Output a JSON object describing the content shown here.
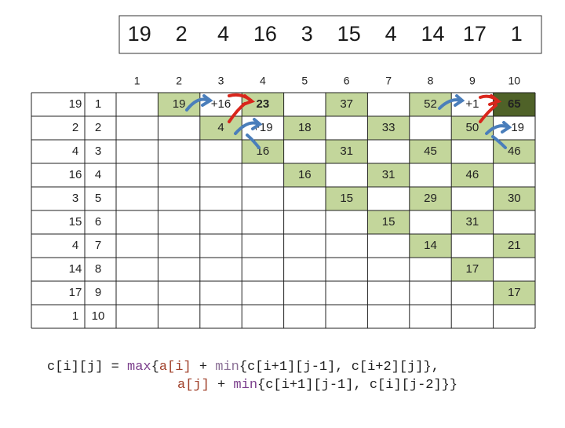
{
  "top_sequence": [
    19,
    2,
    4,
    16,
    3,
    15,
    4,
    14,
    17,
    1
  ],
  "column_headers": [
    1,
    2,
    3,
    4,
    5,
    6,
    7,
    8,
    9,
    10
  ],
  "row_values": [
    19,
    2,
    4,
    16,
    3,
    15,
    4,
    14,
    17,
    1
  ],
  "row_headers": [
    1,
    2,
    3,
    4,
    5,
    6,
    7,
    8,
    9,
    10
  ],
  "table": {
    "rows": [
      [
        null,
        "19",
        "+16",
        "23",
        null,
        "37",
        null,
        "52",
        "+1",
        "65"
      ],
      [
        null,
        null,
        "4",
        "+19",
        "18",
        null,
        "33",
        null,
        "50",
        "+19"
      ],
      [
        null,
        null,
        null,
        "16",
        null,
        "31",
        null,
        "45",
        null,
        "46"
      ],
      [
        null,
        null,
        null,
        null,
        "16",
        null,
        "31",
        null,
        "46",
        null
      ],
      [
        null,
        null,
        null,
        null,
        null,
        "15",
        null,
        "29",
        null,
        "30"
      ],
      [
        null,
        null,
        null,
        null,
        null,
        null,
        "15",
        null,
        "31",
        null
      ],
      [
        null,
        null,
        null,
        null,
        null,
        null,
        null,
        "14",
        null,
        "21"
      ],
      [
        null,
        null,
        null,
        null,
        null,
        null,
        null,
        null,
        "17",
        null
      ],
      [
        null,
        null,
        null,
        null,
        null,
        null,
        null,
        null,
        null,
        "17"
      ],
      [
        null,
        null,
        null,
        null,
        null,
        null,
        null,
        null,
        null,
        null
      ]
    ]
  },
  "formula": {
    "lines": [
      [
        {
          "text": "c[i][j] = ",
          "color": "#1f1f1f"
        },
        {
          "text": "max",
          "color": "#7b3f8c"
        },
        {
          "text": "{",
          "color": "#1f1f1f"
        },
        {
          "text": "a[i]",
          "color": "#a0402a"
        },
        {
          "text": " + ",
          "color": "#1f1f1f"
        },
        {
          "text": "min",
          "color": "#8a6f95"
        },
        {
          "text": "{c[i+1][j-1], c[i+2][j]},",
          "color": "#1f1f1f"
        }
      ],
      [
        {
          "text": "a[j]",
          "color": "#a0402a"
        },
        {
          "text": " + ",
          "color": "#1f1f1f"
        },
        {
          "text": "min",
          "color": "#7b3f8c"
        },
        {
          "text": "{c[i+1][j-1], c[i][j-2]}}",
          "color": "#1f1f1f"
        }
      ]
    ]
  }
}
